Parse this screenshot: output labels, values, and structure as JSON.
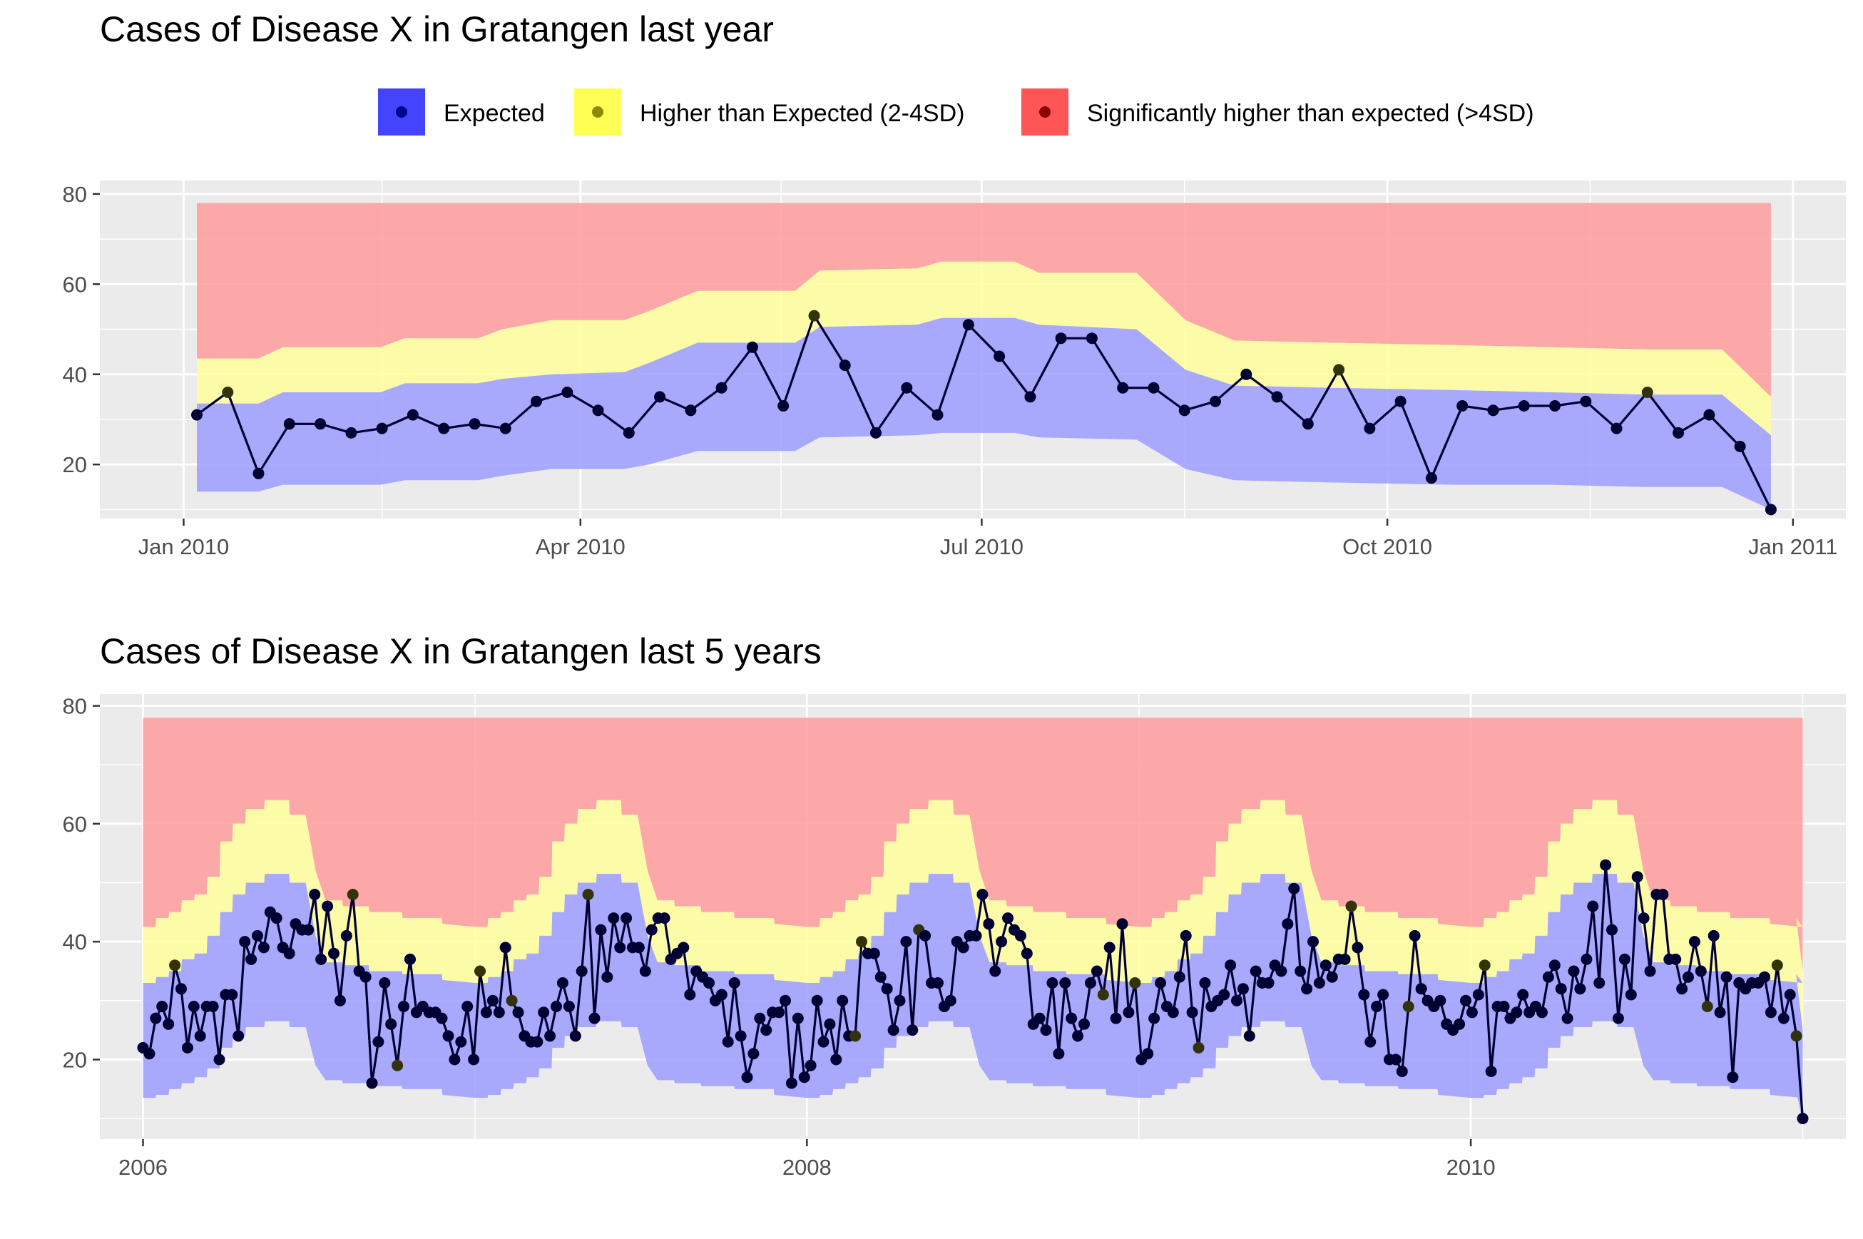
{
  "legend": {
    "items": [
      {
        "label": "Expected",
        "fill": "#4444ff",
        "dot": "#00008b"
      },
      {
        "label": "Higher than Expected (2-4SD)",
        "fill": "#ffff55",
        "dot": "#8b8b00"
      },
      {
        "label": "Significantly higher than expected (>4SD)",
        "fill": "#ff5555",
        "dot": "#8b0000"
      }
    ],
    "placement": "top"
  },
  "colors": {
    "panel_background": "#ebebeb",
    "gridline": "#ffffff",
    "band_expected": "#9999ff",
    "band_high": "#ffff99",
    "band_significant": "#ff9999",
    "line": "#000033",
    "point_normal": "#000033",
    "point_high": "#33330a"
  },
  "chart_data": [
    {
      "type": "area",
      "title": "Cases of Disease X in Gratangen last year",
      "xlabel": "",
      "ylabel": "",
      "ylim": [
        8,
        83
      ],
      "yticks": [
        20,
        40,
        60,
        80
      ],
      "xlim": [
        "2009-12-13",
        "2011-01-13"
      ],
      "xticks": [
        {
          "date": "2010-01-01",
          "label": "Jan 2010"
        },
        {
          "date": "2010-04-01",
          "label": "Apr 2010"
        },
        {
          "date": "2010-07-01",
          "label": "Jul 2010"
        },
        {
          "date": "2010-10-01",
          "label": "Oct 2010"
        },
        {
          "date": "2011-01-01",
          "label": "Jan 2011"
        }
      ],
      "grid": true,
      "top_limit": 78,
      "bands": [
        {
          "date": "2010-01-01",
          "lower": 14,
          "expected_upper": 33,
          "high_upper": 43
        },
        {
          "date": "2010-02-22",
          "lower": 14,
          "expected_upper": 34,
          "high_upper": 43
        },
        {
          "date": "2010-03-01",
          "lower": 15.5,
          "expected_upper": 36,
          "high_upper": 46
        },
        {
          "date": "2010-03-29",
          "lower": 15.5,
          "expected_upper": 36,
          "high_upper": 46
        },
        {
          "date": "2010-04-05",
          "lower": 16.5,
          "expected_upper": 38,
          "high_upper": 48
        },
        {
          "date": "2010-04-26",
          "lower": 16.5,
          "expected_upper": 38,
          "high_upper": 48
        },
        {
          "date": "2010-05-03",
          "lower": 18,
          "expected_upper": 39,
          "high_upper": 50
        },
        {
          "date": "2010-05-17",
          "lower": 19,
          "expected_upper": 40,
          "high_upper": 52
        },
        {
          "date": "2010-06-07",
          "lower": 19,
          "expected_upper": 41,
          "high_upper": 52
        },
        {
          "date": "2010-06-14",
          "lower": 20,
          "expected_upper": 43,
          "high_upper": 54
        },
        {
          "date": "2010-06-28",
          "lower": 23,
          "expected_upper": 47,
          "high_upper": 58
        },
        {
          "date": "2010-07-26",
          "lower": 23,
          "expected_upper": 47,
          "high_upper": 58
        },
        {
          "date": "2010-08-02",
          "lower": 26,
          "expected_upper": 50,
          "high_upper": 63
        },
        {
          "date": "2010-08-30",
          "lower": 26,
          "expected_upper": 51,
          "high_upper": 64
        },
        {
          "date": "2010-09-06",
          "lower": 27,
          "expected_upper": 52,
          "high_upper": 64.5
        },
        {
          "date": "2010-09-27",
          "lower": 27,
          "expected_upper": 52,
          "high_upper": 64.5
        },
        {
          "date": "2010-10-04",
          "lower": 26,
          "expected_upper": 51,
          "high_upper": 63
        },
        {
          "date": "2010-10-18",
          "lower": 25.5,
          "expected_upper": 50,
          "high_upper": 62
        },
        {
          "date": "2010-11-08",
          "lower": 25.5,
          "expected_upper": 50,
          "high_upper": 62
        },
        {
          "date": "2010-11-22",
          "lower": 19,
          "expected_upper": 41,
          "high_upper": 51
        },
        {
          "date": "2010-12-06",
          "lower": 16.5,
          "expected_upper": 37,
          "high_upper": 47.5
        },
        {
          "date": "2011-01-03",
          "lower": 16,
          "expected_upper": 37,
          "high_upper": 47
        },
        {
          "date": "2011-02-07",
          "lower": 15.5,
          "expected_upper": 36,
          "high_upper": 46
        },
        {
          "date": "2011-03-07",
          "lower": 15,
          "expected_upper": 35.5,
          "high_upper": 45.5
        },
        {
          "date": "2011-04-04",
          "lower": 15,
          "expected_upper": 35,
          "high_upper": 45
        },
        {
          "date": "2011-04-25",
          "lower": 14.5,
          "expected_upper": 34.5,
          "high_upper": 44.5
        },
        {
          "date": "2011-05-02",
          "lower": 9,
          "expected_upper": 26,
          "high_upper": 35
        }
      ],
      "band_date_shift": "none",
      "series": [
        {
          "dates": [
            "2010-01-04",
            "2010-01-11",
            "2010-01-18",
            "2010-01-25",
            "2010-02-01",
            "2010-02-08",
            "2010-02-15",
            "2010-02-22",
            "2010-03-01",
            "2010-03-08",
            "2010-03-15",
            "2010-03-22",
            "2010-03-29",
            "2010-04-05",
            "2010-04-12",
            "2010-04-19",
            "2010-04-26",
            "2010-05-03",
            "2010-05-10",
            "2010-05-17",
            "2010-05-24",
            "2010-05-31",
            "2010-06-07",
            "2010-06-14",
            "2010-06-21",
            "2010-06-28",
            "2010-07-05",
            "2010-07-12",
            "2010-07-19",
            "2010-07-26",
            "2010-08-02",
            "2010-08-09",
            "2010-08-16",
            "2010-08-23",
            "2010-08-30",
            "2010-09-06",
            "2010-09-13",
            "2010-09-20",
            "2010-09-27",
            "2010-10-04",
            "2010-10-11",
            "2010-10-18",
            "2010-10-25",
            "2010-11-01",
            "2010-11-08",
            "2010-11-15",
            "2010-11-22",
            "2010-11-29",
            "2010-12-06",
            "2010-12-13",
            "2010-12-20",
            "2010-12-27"
          ],
          "values": [
            31,
            36,
            18,
            29,
            29,
            27,
            28,
            31,
            28,
            29,
            28,
            34,
            36,
            32,
            27,
            35,
            32,
            37,
            46,
            33,
            53,
            42,
            27,
            37,
            31,
            51,
            44,
            35,
            48,
            48,
            37,
            37,
            32,
            34,
            40,
            35,
            29,
            41,
            28,
            34,
            17,
            33,
            32,
            33,
            33,
            34,
            28,
            36,
            27,
            31,
            24,
            10
          ],
          "status": [
            "n",
            "h",
            "n",
            "n",
            "n",
            "n",
            "n",
            "n",
            "n",
            "n",
            "n",
            "n",
            "n",
            "n",
            "n",
            "n",
            "n",
            "n",
            "n",
            "n",
            "h",
            "n",
            "n",
            "n",
            "n",
            "n",
            "n",
            "n",
            "n",
            "n",
            "n",
            "n",
            "n",
            "n",
            "n",
            "n",
            "n",
            "h",
            "n",
            "n",
            "n",
            "n",
            "n",
            "n",
            "n",
            "n",
            "n",
            "h",
            "n",
            "n",
            "n",
            "n"
          ]
        }
      ]
    },
    {
      "type": "area",
      "title": "Cases of Disease X in Gratangen last 5 years",
      "xlabel": "",
      "ylabel": "",
      "ylim": [
        6.5,
        82
      ],
      "yticks": [
        20,
        40,
        60,
        80
      ],
      "xlim": [
        2005.87,
        2011.13
      ],
      "xticks": [
        {
          "value": 2006,
          "label": "2006"
        },
        {
          "value": 2008,
          "label": "2008"
        },
        {
          "value": 2010,
          "label": "2010"
        }
      ],
      "minor_xticks": [
        2007,
        2009,
        2011
      ],
      "grid": true,
      "top_limit": 78,
      "bands_yearly": [
        {
          "t": 0.0,
          "lower": 13.5,
          "expected_upper": 33,
          "high_upper": 42.5
        },
        {
          "t": 0.038,
          "lower": 13.5,
          "expected_upper": 33,
          "high_upper": 42.5
        },
        {
          "t": 0.04,
          "lower": 14,
          "expected_upper": 34,
          "high_upper": 44
        },
        {
          "t": 0.077,
          "lower": 14,
          "expected_upper": 34,
          "high_upper": 44
        },
        {
          "t": 0.079,
          "lower": 15,
          "expected_upper": 35,
          "high_upper": 45
        },
        {
          "t": 0.115,
          "lower": 15,
          "expected_upper": 35,
          "high_upper": 45
        },
        {
          "t": 0.117,
          "lower": 16,
          "expected_upper": 37,
          "high_upper": 47
        },
        {
          "t": 0.154,
          "lower": 16,
          "expected_upper": 37,
          "high_upper": 47
        },
        {
          "t": 0.156,
          "lower": 17,
          "expected_upper": 38,
          "high_upper": 48
        },
        {
          "t": 0.192,
          "lower": 17,
          "expected_upper": 38,
          "high_upper": 48
        },
        {
          "t": 0.194,
          "lower": 18.5,
          "expected_upper": 41,
          "high_upper": 51
        },
        {
          "t": 0.231,
          "lower": 18.5,
          "expected_upper": 41,
          "high_upper": 51
        },
        {
          "t": 0.233,
          "lower": 22,
          "expected_upper": 45,
          "high_upper": 57
        },
        {
          "t": 0.269,
          "lower": 22,
          "expected_upper": 45,
          "high_upper": 57
        },
        {
          "t": 0.271,
          "lower": 24,
          "expected_upper": 48,
          "high_upper": 60
        },
        {
          "t": 0.308,
          "lower": 24,
          "expected_upper": 48,
          "high_upper": 60
        },
        {
          "t": 0.31,
          "lower": 25.5,
          "expected_upper": 50,
          "high_upper": 62.5
        },
        {
          "t": 0.365,
          "lower": 25.5,
          "expected_upper": 50,
          "high_upper": 62.5
        },
        {
          "t": 0.367,
          "lower": 26.5,
          "expected_upper": 51.5,
          "high_upper": 64
        },
        {
          "t": 0.44,
          "lower": 26.5,
          "expected_upper": 51.5,
          "high_upper": 64
        },
        {
          "t": 0.442,
          "lower": 25.5,
          "expected_upper": 50,
          "high_upper": 61.5
        },
        {
          "t": 0.49,
          "lower": 25.5,
          "expected_upper": 50,
          "high_upper": 61.5
        },
        {
          "t": 0.52,
          "lower": 19,
          "expected_upper": 41,
          "high_upper": 52
        },
        {
          "t": 0.55,
          "lower": 16.5,
          "expected_upper": 36.5,
          "high_upper": 47
        },
        {
          "t": 0.6,
          "lower": 16.5,
          "expected_upper": 36.5,
          "high_upper": 47
        },
        {
          "t": 0.602,
          "lower": 16,
          "expected_upper": 36,
          "high_upper": 46
        },
        {
          "t": 0.68,
          "lower": 16,
          "expected_upper": 36,
          "high_upper": 46
        },
        {
          "t": 0.682,
          "lower": 15.5,
          "expected_upper": 35,
          "high_upper": 45
        },
        {
          "t": 0.78,
          "lower": 15.5,
          "expected_upper": 35,
          "high_upper": 45
        },
        {
          "t": 0.782,
          "lower": 15,
          "expected_upper": 34.5,
          "high_upper": 44
        },
        {
          "t": 0.9,
          "lower": 15,
          "expected_upper": 34.5,
          "high_upper": 44
        },
        {
          "t": 0.902,
          "lower": 14,
          "expected_upper": 33.5,
          "high_upper": 43
        },
        {
          "t": 1.0,
          "lower": 13.5,
          "expected_upper": 33,
          "high_upper": 42.5
        }
      ],
      "series": [
        {
          "start": 2006.0,
          "step_weeks": 1,
          "values": [
            22,
            21,
            27,
            29,
            26,
            36,
            32,
            22,
            29,
            24,
            29,
            29,
            20,
            31,
            31,
            24,
            40,
            37,
            41,
            39,
            45,
            44,
            39,
            38,
            43,
            42,
            42,
            48,
            37,
            46,
            38,
            30,
            41,
            48,
            35,
            34,
            16,
            23,
            33,
            26,
            19,
            29,
            37,
            28,
            29,
            28,
            28,
            27,
            24,
            20,
            23,
            29,
            20,
            35,
            28,
            30,
            28,
            39,
            30,
            28,
            24,
            23,
            23,
            28,
            24,
            29,
            33,
            29,
            24,
            35,
            48,
            27,
            42,
            34,
            44,
            39,
            44,
            39,
            39,
            35,
            42,
            44,
            44,
            37,
            38,
            39,
            31,
            35,
            34,
            33,
            30,
            31,
            23,
            33,
            24,
            17,
            21,
            27,
            25,
            28,
            28,
            30,
            16,
            27,
            17,
            19,
            30,
            23,
            26,
            20,
            30,
            24,
            24,
            40,
            38,
            38,
            34,
            32,
            25,
            30,
            40,
            25,
            42,
            41,
            33,
            33,
            29,
            30,
            40,
            39,
            41,
            41,
            48,
            43,
            35,
            40,
            44,
            42,
            41,
            38,
            26,
            27,
            25,
            33,
            21,
            33,
            27,
            24,
            26,
            33,
            35,
            31,
            39,
            27,
            43,
            28,
            33,
            20,
            21,
            27,
            33,
            29,
            28,
            34,
            41,
            28,
            22,
            33,
            29,
            30,
            31,
            36,
            30,
            32,
            24,
            35,
            33,
            33,
            36,
            35,
            43,
            49,
            35,
            32,
            40,
            33,
            36,
            34,
            37,
            37,
            46,
            39,
            31,
            23,
            29,
            31,
            20,
            20,
            18,
            29,
            41,
            32,
            30,
            29,
            30,
            26,
            25,
            26,
            30,
            28,
            31,
            36,
            18,
            29,
            29,
            27,
            28,
            31,
            28,
            29,
            28,
            34,
            36,
            32,
            27,
            35,
            32,
            37,
            46,
            33,
            53,
            42,
            27,
            37,
            31,
            51,
            44,
            35,
            48,
            48,
            37,
            37,
            32,
            34,
            40,
            35,
            29,
            41,
            28,
            34,
            17,
            33,
            32,
            33,
            33,
            34,
            28,
            36,
            27,
            31,
            24,
            10
          ],
          "high_indices": [
            5,
            33,
            40,
            53,
            58,
            70,
            112,
            113,
            122,
            151,
            156,
            166,
            190,
            199,
            211,
            246,
            260,
            271,
            257
          ]
        }
      ]
    }
  ]
}
